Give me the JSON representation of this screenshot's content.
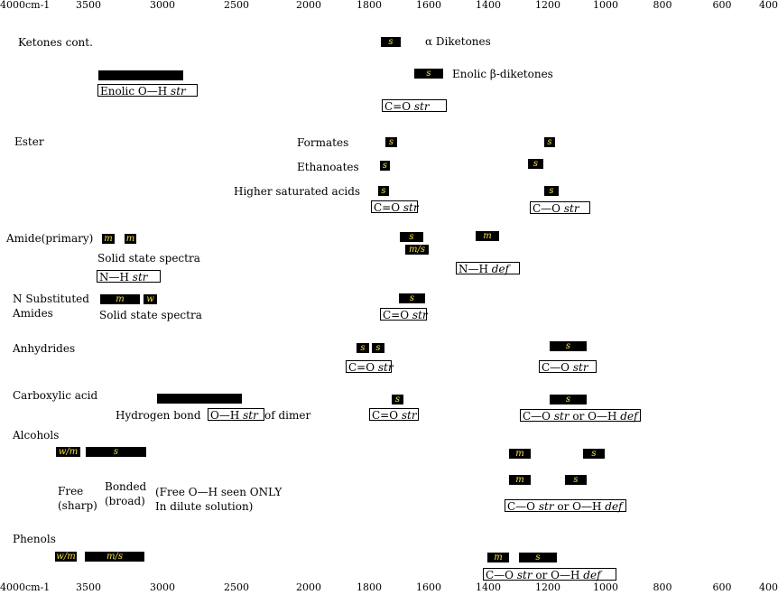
{
  "axis": {
    "ticks": [
      {
        "label": "4000cm-1"
      },
      {
        "label": "3500"
      },
      {
        "label": "3000"
      },
      {
        "label": "2500"
      },
      {
        "label": "2000"
      },
      {
        "label": "1800"
      },
      {
        "label": "1600"
      },
      {
        "label": "1400"
      },
      {
        "label": "1200"
      },
      {
        "label": "1000"
      },
      {
        "label": "800"
      },
      {
        "label": "600"
      },
      {
        "label": "400"
      }
    ]
  },
  "labels": {
    "ketones": "Ketones cont.",
    "alpha_diketones": "α Diketones",
    "enolic_beta": "Enolic β-diketones",
    "ester": "Ester",
    "formates": "Formates",
    "ethanoates": "Ethanoates",
    "higher_saturated": "Higher saturated acids",
    "amide_primary": "Amide(primary)",
    "solid_state_1": "Solid state spectra",
    "n_substituted": "N Substituted",
    "amides": "Amides",
    "solid_state_2": "Solid state spectra",
    "anhydrides": "Anhydrides",
    "carboxylic": "Carboxylic acid",
    "hydrogen_bond": "Hydrogen bond",
    "of_dimer": "of dimer",
    "alcohols": "Alcohols",
    "free": "Free",
    "sharp": "(sharp)",
    "bonded": "Bonded",
    "broad": "(broad)",
    "free_note_1": "(Free O—H seen ONLY",
    "free_note_2": "In dilute solution)",
    "phenols": "Phenols"
  },
  "bars": {
    "k_alpha": "s",
    "k_enol_oh": "",
    "k_enol_beta": "s",
    "e_form_1": "s",
    "e_form_2": "s",
    "e_eth_1": "s",
    "e_eth_2": "s",
    "e_high_1": "s",
    "e_high_2": "s",
    "am_m": "m",
    "am_n": "m",
    "am_co": "s",
    "am_ms": "m/s",
    "am_nh": "m",
    "ns_m": "m",
    "ns_w": "w",
    "ns_co": "s",
    "an_1": "s",
    "an_2": "s",
    "an_co": "s",
    "ca_oh": "",
    "ca_co": "s",
    "ca_c": "s",
    "al_wm": "w/m",
    "al_s": "s",
    "al_m1": "m",
    "al_s1": "s",
    "al_m2": "m",
    "al_s2": "s",
    "ph_wm": "w/m",
    "ph_ms": "m/s",
    "ph_m": "m",
    "ph_s": "s"
  },
  "boxes": {
    "enolic_oh": {
      "a": "Enolic O—H ",
      "b": "str"
    },
    "k_co": {
      "a": "C=O ",
      "b": "str"
    },
    "e_co": {
      "a": "C=O ",
      "b": "str"
    },
    "e_c_o": {
      "a": "C—O ",
      "b": "str"
    },
    "nh_str": {
      "a": "N—H ",
      "b": "str"
    },
    "nh_def": {
      "a": "N—H ",
      "b": "def"
    },
    "ns_co": {
      "a": "C=O ",
      "b": "str"
    },
    "an_co": {
      "a": "C=O ",
      "b": "str"
    },
    "an_c_o": {
      "a": "C—O ",
      "b": "str"
    },
    "ca_oh": {
      "a": "O—H ",
      "b": "str"
    },
    "ca_co": {
      "a": "C=O ",
      "b": "str"
    },
    "ca_c_o": {
      "a": "C—O ",
      "b": "str",
      "c": " or O—H ",
      "d": "def"
    },
    "al_c_o": {
      "a": "C—O ",
      "b": "str",
      "c": " or O—H ",
      "d": "def"
    },
    "ph_c_o": {
      "a": "C—O ",
      "b": "str",
      "c": " or O—H ",
      "d": "def"
    }
  }
}
